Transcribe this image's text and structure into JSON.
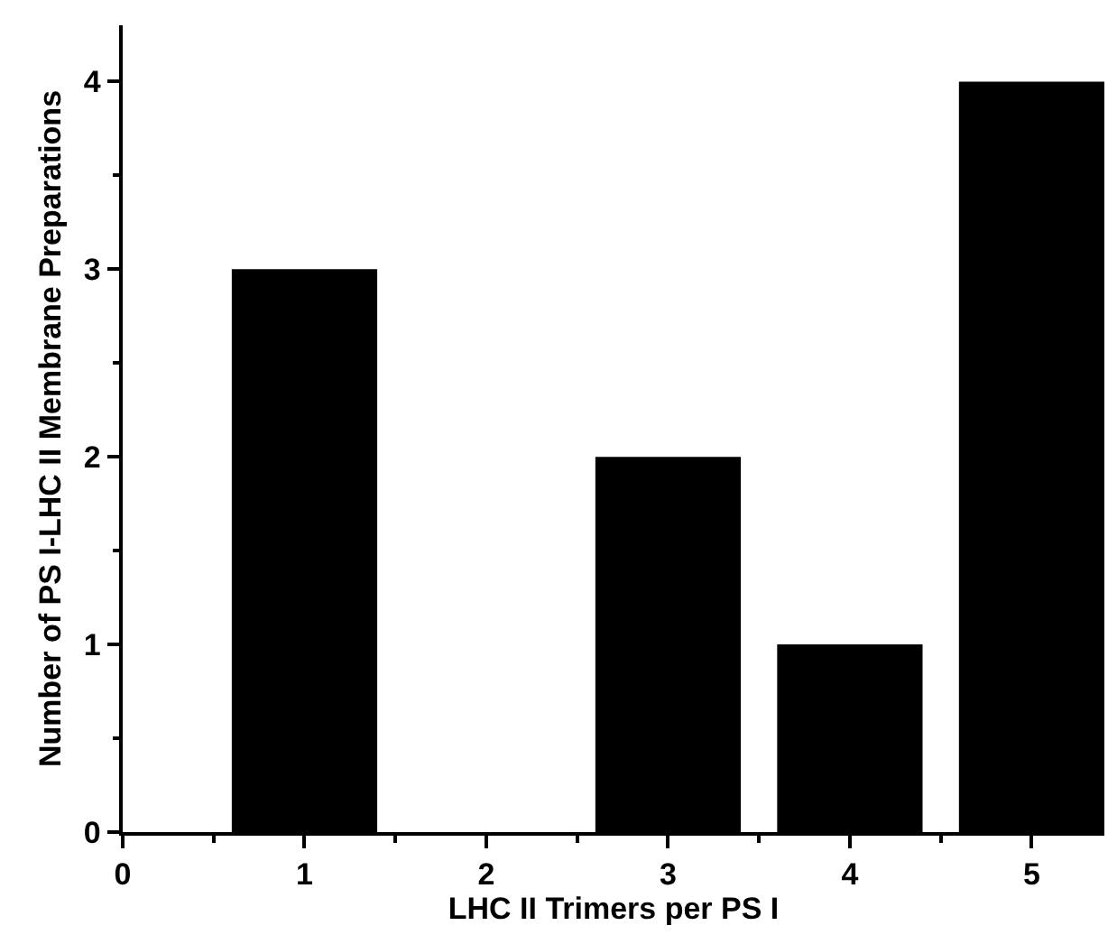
{
  "chart_data": {
    "type": "bar",
    "xlabel": "LHC II Trimers per PS I",
    "ylabel": "Number of PS I-LHC II Membrane Preparations",
    "x": [
      1,
      2,
      3,
      4,
      5
    ],
    "values": [
      3,
      0,
      2,
      1,
      4
    ],
    "color": "#000000",
    "xlim": [
      0,
      5.4
    ],
    "xticks": [
      0,
      1,
      2,
      3,
      4,
      5
    ],
    "ylim": [
      0,
      4.3
    ],
    "yticks": [
      0,
      1,
      2,
      3,
      4
    ]
  }
}
